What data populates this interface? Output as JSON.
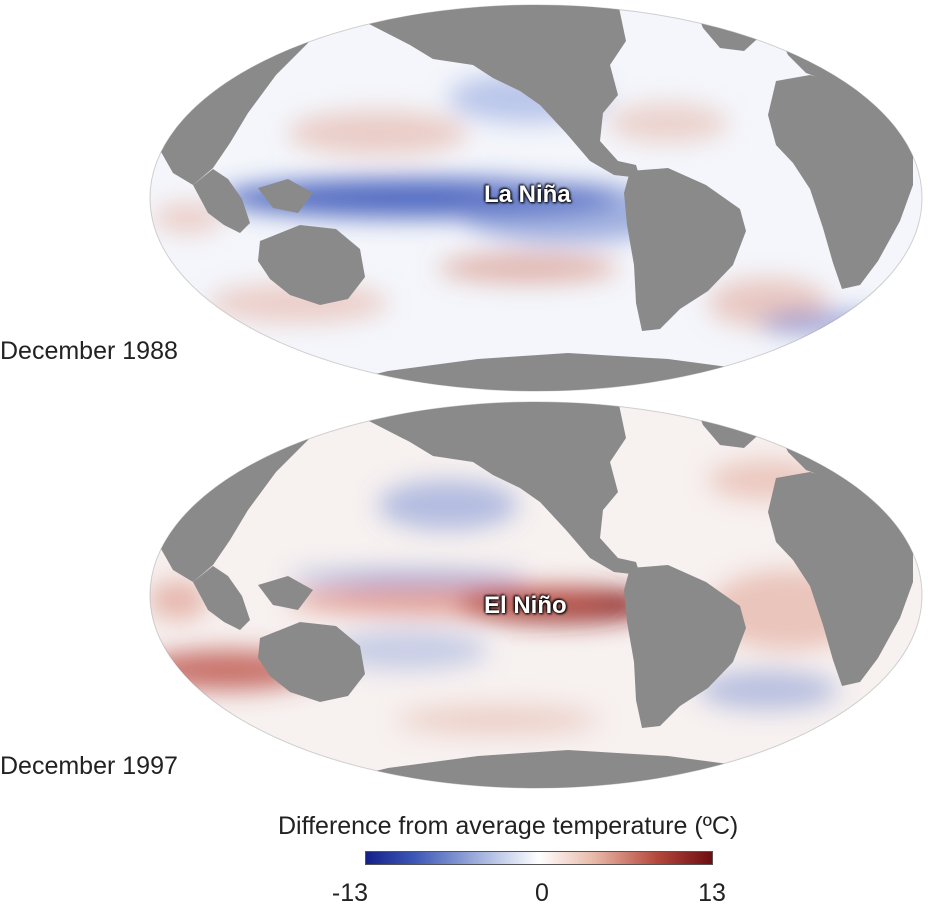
{
  "maps": [
    {
      "period": "December 1988",
      "event": "La Niña"
    },
    {
      "period": "December 1997",
      "event": "El Niño"
    }
  ],
  "legend": {
    "title": "Difference from average temperature (ºC)",
    "ticks": [
      "-13",
      "0",
      "13"
    ],
    "colors": {
      "cold": "#15208a",
      "neutral": "#ffffff",
      "warm": "#6e0d10",
      "land": "#8a8a8a"
    }
  }
}
